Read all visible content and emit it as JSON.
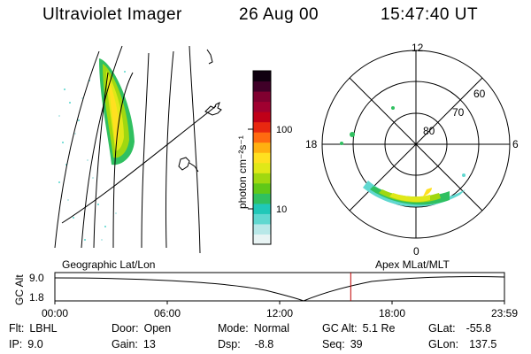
{
  "header": {
    "title": "Ultraviolet Imager",
    "date": "26 Aug 00",
    "time": "15:47:40 UT"
  },
  "colorbar": {
    "label": "photon cm⁻²s⁻¹",
    "ticks": [
      "100",
      "10"
    ],
    "colors": [
      "#e8f4f4",
      "#b8e8e8",
      "#60d8d0",
      "#20c8b8",
      "#30c060",
      "#60c818",
      "#a0d810",
      "#e0e818",
      "#ffe020",
      "#ffb010",
      "#ff6a10",
      "#e82810",
      "#c00018",
      "#a00030",
      "#800030",
      "#400028",
      "#100010"
    ]
  },
  "polar_plot": {
    "labels": [
      "12",
      "60",
      "70",
      "80",
      "18",
      "6",
      "0"
    ]
  },
  "panels": {
    "left_label": "Geographic Lat/Lon",
    "right_label": "Apex MLat/MLT"
  },
  "altitude_chart": {
    "ylabel": "GC Alt",
    "yticks": [
      "9.0",
      "1.8"
    ],
    "xticks": [
      "00:00",
      "06:00",
      "12:00",
      "18:00",
      "23:59"
    ],
    "current_marker_time": "15:47",
    "marker_color": "#c00000"
  },
  "footer": {
    "flt_label": "Flt:",
    "flt_value": "LBHL",
    "ip_label": "IP:",
    "ip_value": "9.0",
    "door_label": "Door:",
    "door_value": "Open",
    "gain_label": "Gain:",
    "gain_value": "13",
    "mode_label": "Mode:",
    "mode_value": "Normal",
    "dsp_label": "Dsp:",
    "dsp_value": "-8.8",
    "gcalt_label": "GC Alt:",
    "gcalt_value": "5.1 Re",
    "seq_label": "Seq:",
    "seq_value": "39",
    "glat_label": "GLat:",
    "glat_value": "-55.8",
    "glon_label": "GLon:",
    "glon_value": "137.5"
  }
}
